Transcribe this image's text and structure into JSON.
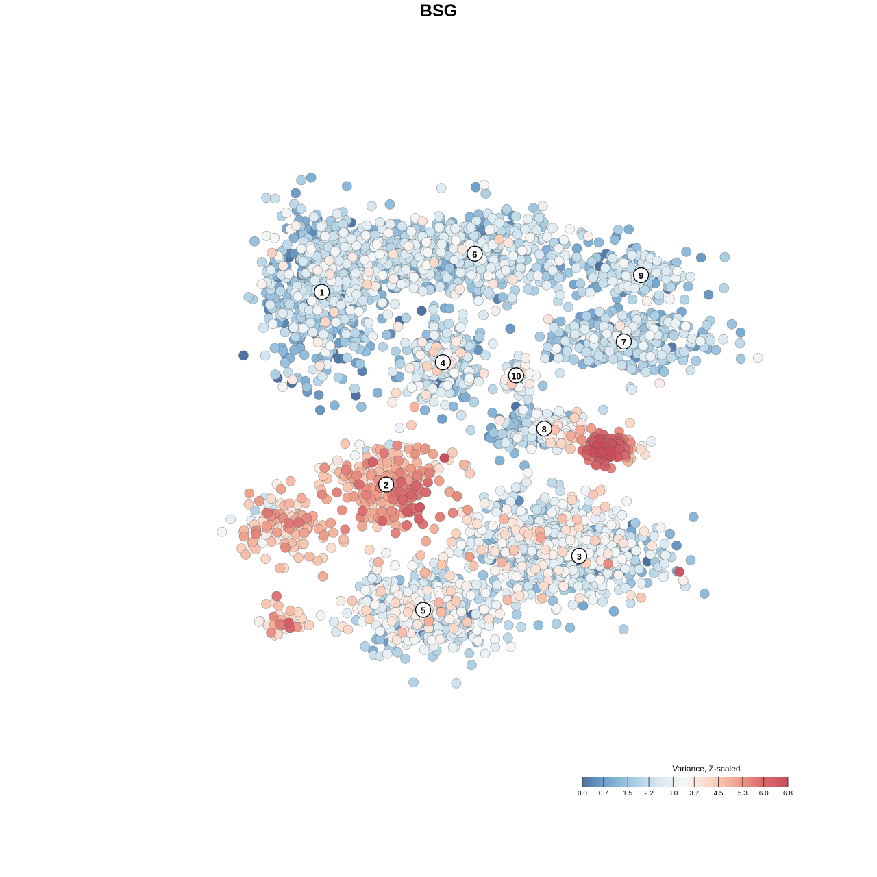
{
  "title": "BSG",
  "chart_data": {
    "type": "scatter",
    "title": "BSG",
    "xlabel": "",
    "ylabel": "",
    "grid": false,
    "clusters": [
      {
        "label": "1",
        "x": 0.29,
        "y": 0.731
      },
      {
        "label": "2",
        "x": 0.391,
        "y": 0.424
      },
      {
        "label": "3",
        "x": 0.694,
        "y": 0.31
      },
      {
        "label": "4",
        "x": 0.48,
        "y": 0.619
      },
      {
        "label": "5",
        "x": 0.449,
        "y": 0.224
      },
      {
        "label": "6",
        "x": 0.53,
        "y": 0.792
      },
      {
        "label": "7",
        "x": 0.764,
        "y": 0.652
      },
      {
        "label": "8",
        "x": 0.639,
        "y": 0.513
      },
      {
        "label": "9",
        "x": 0.791,
        "y": 0.758
      },
      {
        "label": "10",
        "x": 0.595,
        "y": 0.598
      }
    ],
    "color_legend": {
      "title": "Variance, Z-scaled",
      "placement": "bottom-right",
      "min": 0.0,
      "max": 6.8,
      "ticks": [
        "0.0",
        "0.7",
        "1.5",
        "2.2",
        "3.0",
        "3.7",
        "4.5",
        "5.3",
        "6.0",
        "6.8"
      ],
      "tick_values": [
        0.0,
        0.7,
        1.5,
        2.2,
        3.0,
        3.7,
        4.5,
        5.3,
        6.0,
        6.8
      ],
      "colors": [
        "#4e72a3",
        "#76a7d0",
        "#a9cde3",
        "#d8e8f1",
        "#f7f7f7",
        "#fbd5c3",
        "#f0a48e",
        "#d96a6e",
        "#c84e5e"
      ]
    },
    "hotspots": [
      {
        "x": 0.455,
        "y": 0.385,
        "value": 6.3
      },
      {
        "x": 0.735,
        "y": 0.48,
        "value": 6.5
      },
      {
        "x": 0.32,
        "y": 0.385,
        "value": 5.4
      },
      {
        "x": 0.28,
        "y": 0.268,
        "value": 4.6
      }
    ]
  }
}
